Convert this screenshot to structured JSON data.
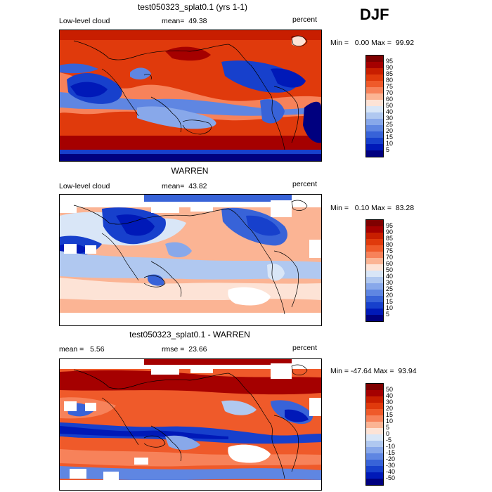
{
  "season": "DJF",
  "panels": [
    {
      "title": "test050323_splat0.1 (yrs 1-1)",
      "left_label": "Low-level cloud",
      "mean_label": "mean=",
      "mean_value": "49.38",
      "units": "percent",
      "min_label": "Min =",
      "min_value": "0.00",
      "max_label": "Max =",
      "max_value": "99.92",
      "colorbar": {
        "labels": [
          "95",
          "90",
          "85",
          "80",
          "75",
          "70",
          "60",
          "50",
          "40",
          "30",
          "25",
          "20",
          "15",
          "10",
          "5"
        ],
        "colors": [
          "#7f0000",
          "#a50000",
          "#c81e00",
          "#e03a0c",
          "#ef5a2a",
          "#f7825a",
          "#fbb494",
          "#fde3d6",
          "#d9e6f7",
          "#b0c8f0",
          "#88a8ea",
          "#5f86e2",
          "#3863d8",
          "#1740cc",
          "#0019b8",
          "#00007f"
        ]
      }
    },
    {
      "title": "WARREN",
      "left_label": "Low-level cloud",
      "mean_label": "mean=",
      "mean_value": "43.82",
      "units": "percent",
      "min_label": "Min =",
      "min_value": "0.10",
      "max_label": "Max =",
      "max_value": "83.28",
      "colorbar": {
        "labels": [
          "95",
          "90",
          "85",
          "80",
          "75",
          "70",
          "60",
          "50",
          "40",
          "30",
          "25",
          "20",
          "15",
          "10",
          "5"
        ],
        "colors": [
          "#7f0000",
          "#a50000",
          "#c81e00",
          "#e03a0c",
          "#ef5a2a",
          "#f7825a",
          "#fbb494",
          "#fde3d6",
          "#d9e6f7",
          "#b0c8f0",
          "#88a8ea",
          "#5f86e2",
          "#3863d8",
          "#1740cc",
          "#0019b8",
          "#00007f"
        ]
      }
    },
    {
      "title": "test050323_splat0.1 - WARREN",
      "left_label": "",
      "mean_label": "mean =",
      "mean_value": "5.56",
      "rmse_label": "rmse =",
      "rmse_value": "23.66",
      "units": "percent",
      "min_label": "Min =",
      "min_value": "-47.64",
      "max_label": "Max =",
      "max_value": "93.94",
      "colorbar": {
        "labels": [
          "50",
          "40",
          "30",
          "20",
          "15",
          "10",
          "5",
          "0",
          "-5",
          "-10",
          "-15",
          "-20",
          "-30",
          "-40",
          "-50"
        ],
        "colors": [
          "#7f0000",
          "#a50000",
          "#c81e00",
          "#e03a0c",
          "#ef5a2a",
          "#f7825a",
          "#fbb494",
          "#fde3d6",
          "#d9e6f7",
          "#b0c8f0",
          "#88a8ea",
          "#5f86e2",
          "#3863d8",
          "#1740cc",
          "#0019b8",
          "#00007f"
        ]
      }
    }
  ]
}
